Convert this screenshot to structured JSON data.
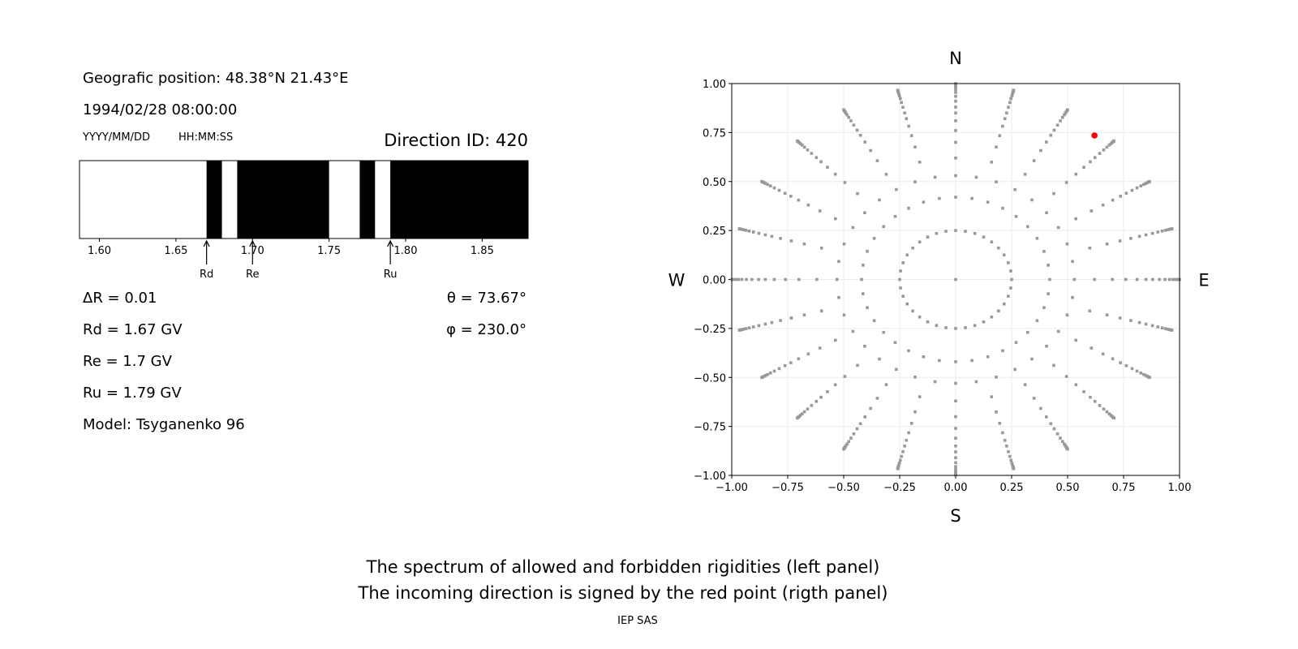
{
  "info": {
    "position": "Geografic position: 48.38°N 21.43°E",
    "datetime": "1994/02/28 08:00:00",
    "date_format": "YYYY/MM/DD",
    "time_format": "HH:MM:SS",
    "direction_id": "Direction ID: 420",
    "delta_r": "ΔR = 0.01",
    "rd": "Rd = 1.67 GV",
    "re": "Re = 1.7 GV",
    "ru": "Ru = 1.79 GV",
    "model": "Model: Tsyganenko 96",
    "theta": "θ = 73.67°",
    "phi": "φ = 230.0°"
  },
  "captions": {
    "line1": "The spectrum of allowed and forbidden rigidities (left panel)",
    "line2": "The incoming direction is signed by the red point (rigth panel)",
    "credit": "IEP SAS"
  },
  "chart_data": [
    {
      "type": "bar",
      "subtype": "rigidity-spectrum",
      "xlim": [
        1.587,
        1.88
      ],
      "xticks": [
        "1.60",
        "1.65",
        "1.70",
        "1.75",
        "1.80",
        "1.85"
      ],
      "forbidden_bands": [
        [
          1.67,
          1.68
        ],
        [
          1.69,
          1.75
        ],
        [
          1.77,
          1.78
        ],
        [
          1.79,
          1.88
        ]
      ],
      "colors": {
        "allowed": "#ffffff",
        "forbidden": "#000000"
      },
      "markers": [
        {
          "label": "Rd",
          "value": 1.67
        },
        {
          "label": "Re",
          "value": 1.7
        },
        {
          "label": "Ru",
          "value": 1.79
        }
      ]
    },
    {
      "type": "scatter",
      "subtype": "direction-map",
      "xlim": [
        -1.0,
        1.0
      ],
      "ylim": [
        -1.0,
        1.0
      ],
      "xticks": [
        "−1.00",
        "−0.75",
        "−0.50",
        "−0.25",
        "0.00",
        "0.25",
        "0.50",
        "0.75",
        "1.00"
      ],
      "yticks": [
        "−1.00",
        "−0.75",
        "−0.50",
        "−0.25",
        "0.00",
        "0.25",
        "0.50",
        "0.75",
        "1.00"
      ],
      "grid": true,
      "compass": {
        "top": "N",
        "bottom": "S",
        "left": "W",
        "right": "E"
      },
      "grid_points": {
        "center": [
          0,
          0
        ],
        "rings": [
          {
            "r": 0.25,
            "count": 36
          },
          {
            "r": 0.42,
            "count": 36
          },
          {
            "r": 0.53,
            "count": 36
          }
        ],
        "spoke_count": 24,
        "spoke_radii": [
          0.62,
          0.7,
          0.76,
          0.81,
          0.85,
          0.88,
          0.91,
          0.935,
          0.955,
          0.97,
          0.98,
          0.988,
          0.994,
          0.998,
          1.0
        ]
      },
      "highlight_point": {
        "x": 0.62,
        "y": 0.735
      },
      "colors": {
        "points": "#999999",
        "highlight": "#ff0000"
      }
    }
  ]
}
